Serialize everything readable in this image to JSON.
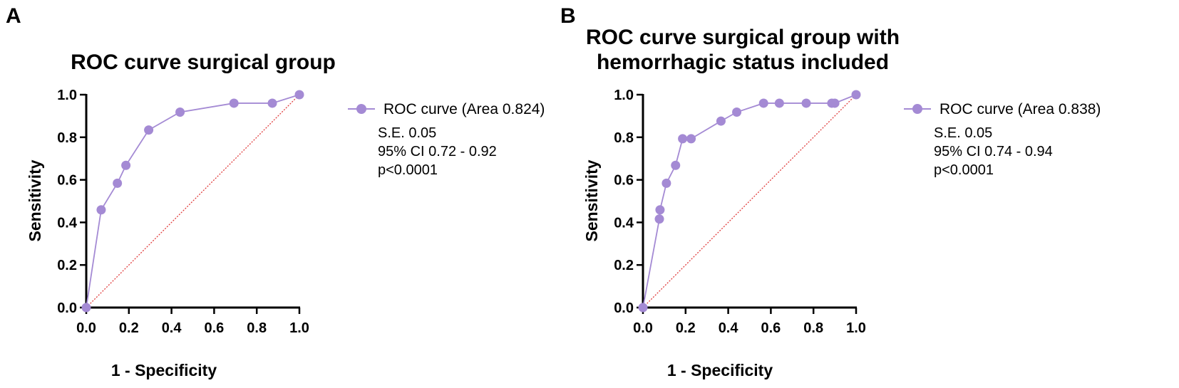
{
  "chart_data": [
    {
      "panel": "A",
      "type": "line",
      "title_lines": [
        "ROC curve surgical group"
      ],
      "xlabel": "1 - Specificity",
      "ylabel": "Sensitivity",
      "xlim": [
        0,
        1
      ],
      "ylim": [
        0,
        1
      ],
      "xticks": [
        "0.0",
        "0.2",
        "0.4",
        "0.6",
        "0.8",
        "1.0"
      ],
      "yticks": [
        "0.0",
        "0.2",
        "0.4",
        "0.6",
        "0.8",
        "1.0"
      ],
      "series": [
        {
          "name": "ROC curve (Area 0.824)",
          "x": [
            0,
            0.07,
            0.146,
            0.186,
            0.293,
            0.44,
            0.693,
            0.873,
            1.0
          ],
          "y": [
            0,
            0.459,
            0.584,
            0.668,
            0.834,
            0.918,
            0.96,
            0.96,
            1.0
          ]
        }
      ],
      "reference_line": {
        "x": [
          0,
          1
        ],
        "y": [
          0,
          1
        ]
      },
      "stats": [
        "S.E. 0.05",
        "95% CI 0.72 - 0.92",
        "p<0.0001"
      ],
      "legend_position": "right"
    },
    {
      "panel": "B",
      "type": "line",
      "title_lines": [
        "ROC curve surgical group with",
        "hemorrhagic status included"
      ],
      "xlabel": "1 - Specificity",
      "ylabel": "Sensitivity",
      "xlim": [
        0,
        1
      ],
      "ylim": [
        0,
        1
      ],
      "xticks": [
        "0.0",
        "0.2",
        "0.4",
        "0.6",
        "0.8",
        "1.0"
      ],
      "yticks": [
        "0.0",
        "0.2",
        "0.4",
        "0.6",
        "0.8",
        "1.0"
      ],
      "series": [
        {
          "name": "ROC curve (Area 0.838)",
          "x": [
            0,
            0.077,
            0.08,
            0.11,
            0.153,
            0.186,
            0.226,
            0.366,
            0.44,
            0.566,
            0.64,
            0.766,
            0.886,
            0.9,
            1.0
          ],
          "y": [
            0,
            0.416,
            0.459,
            0.584,
            0.668,
            0.793,
            0.793,
            0.876,
            0.918,
            0.96,
            0.96,
            0.96,
            0.96,
            0.96,
            1.0
          ]
        }
      ],
      "reference_line": {
        "x": [
          0,
          1
        ],
        "y": [
          0,
          1
        ]
      },
      "stats": [
        "S.E. 0.05",
        "95% CI 0.74 - 0.94",
        "p<0.0001"
      ],
      "legend_position": "right"
    }
  ],
  "colors": {
    "series": "#a48ad4",
    "reference": "#e03c3c",
    "axis": "#000000"
  }
}
